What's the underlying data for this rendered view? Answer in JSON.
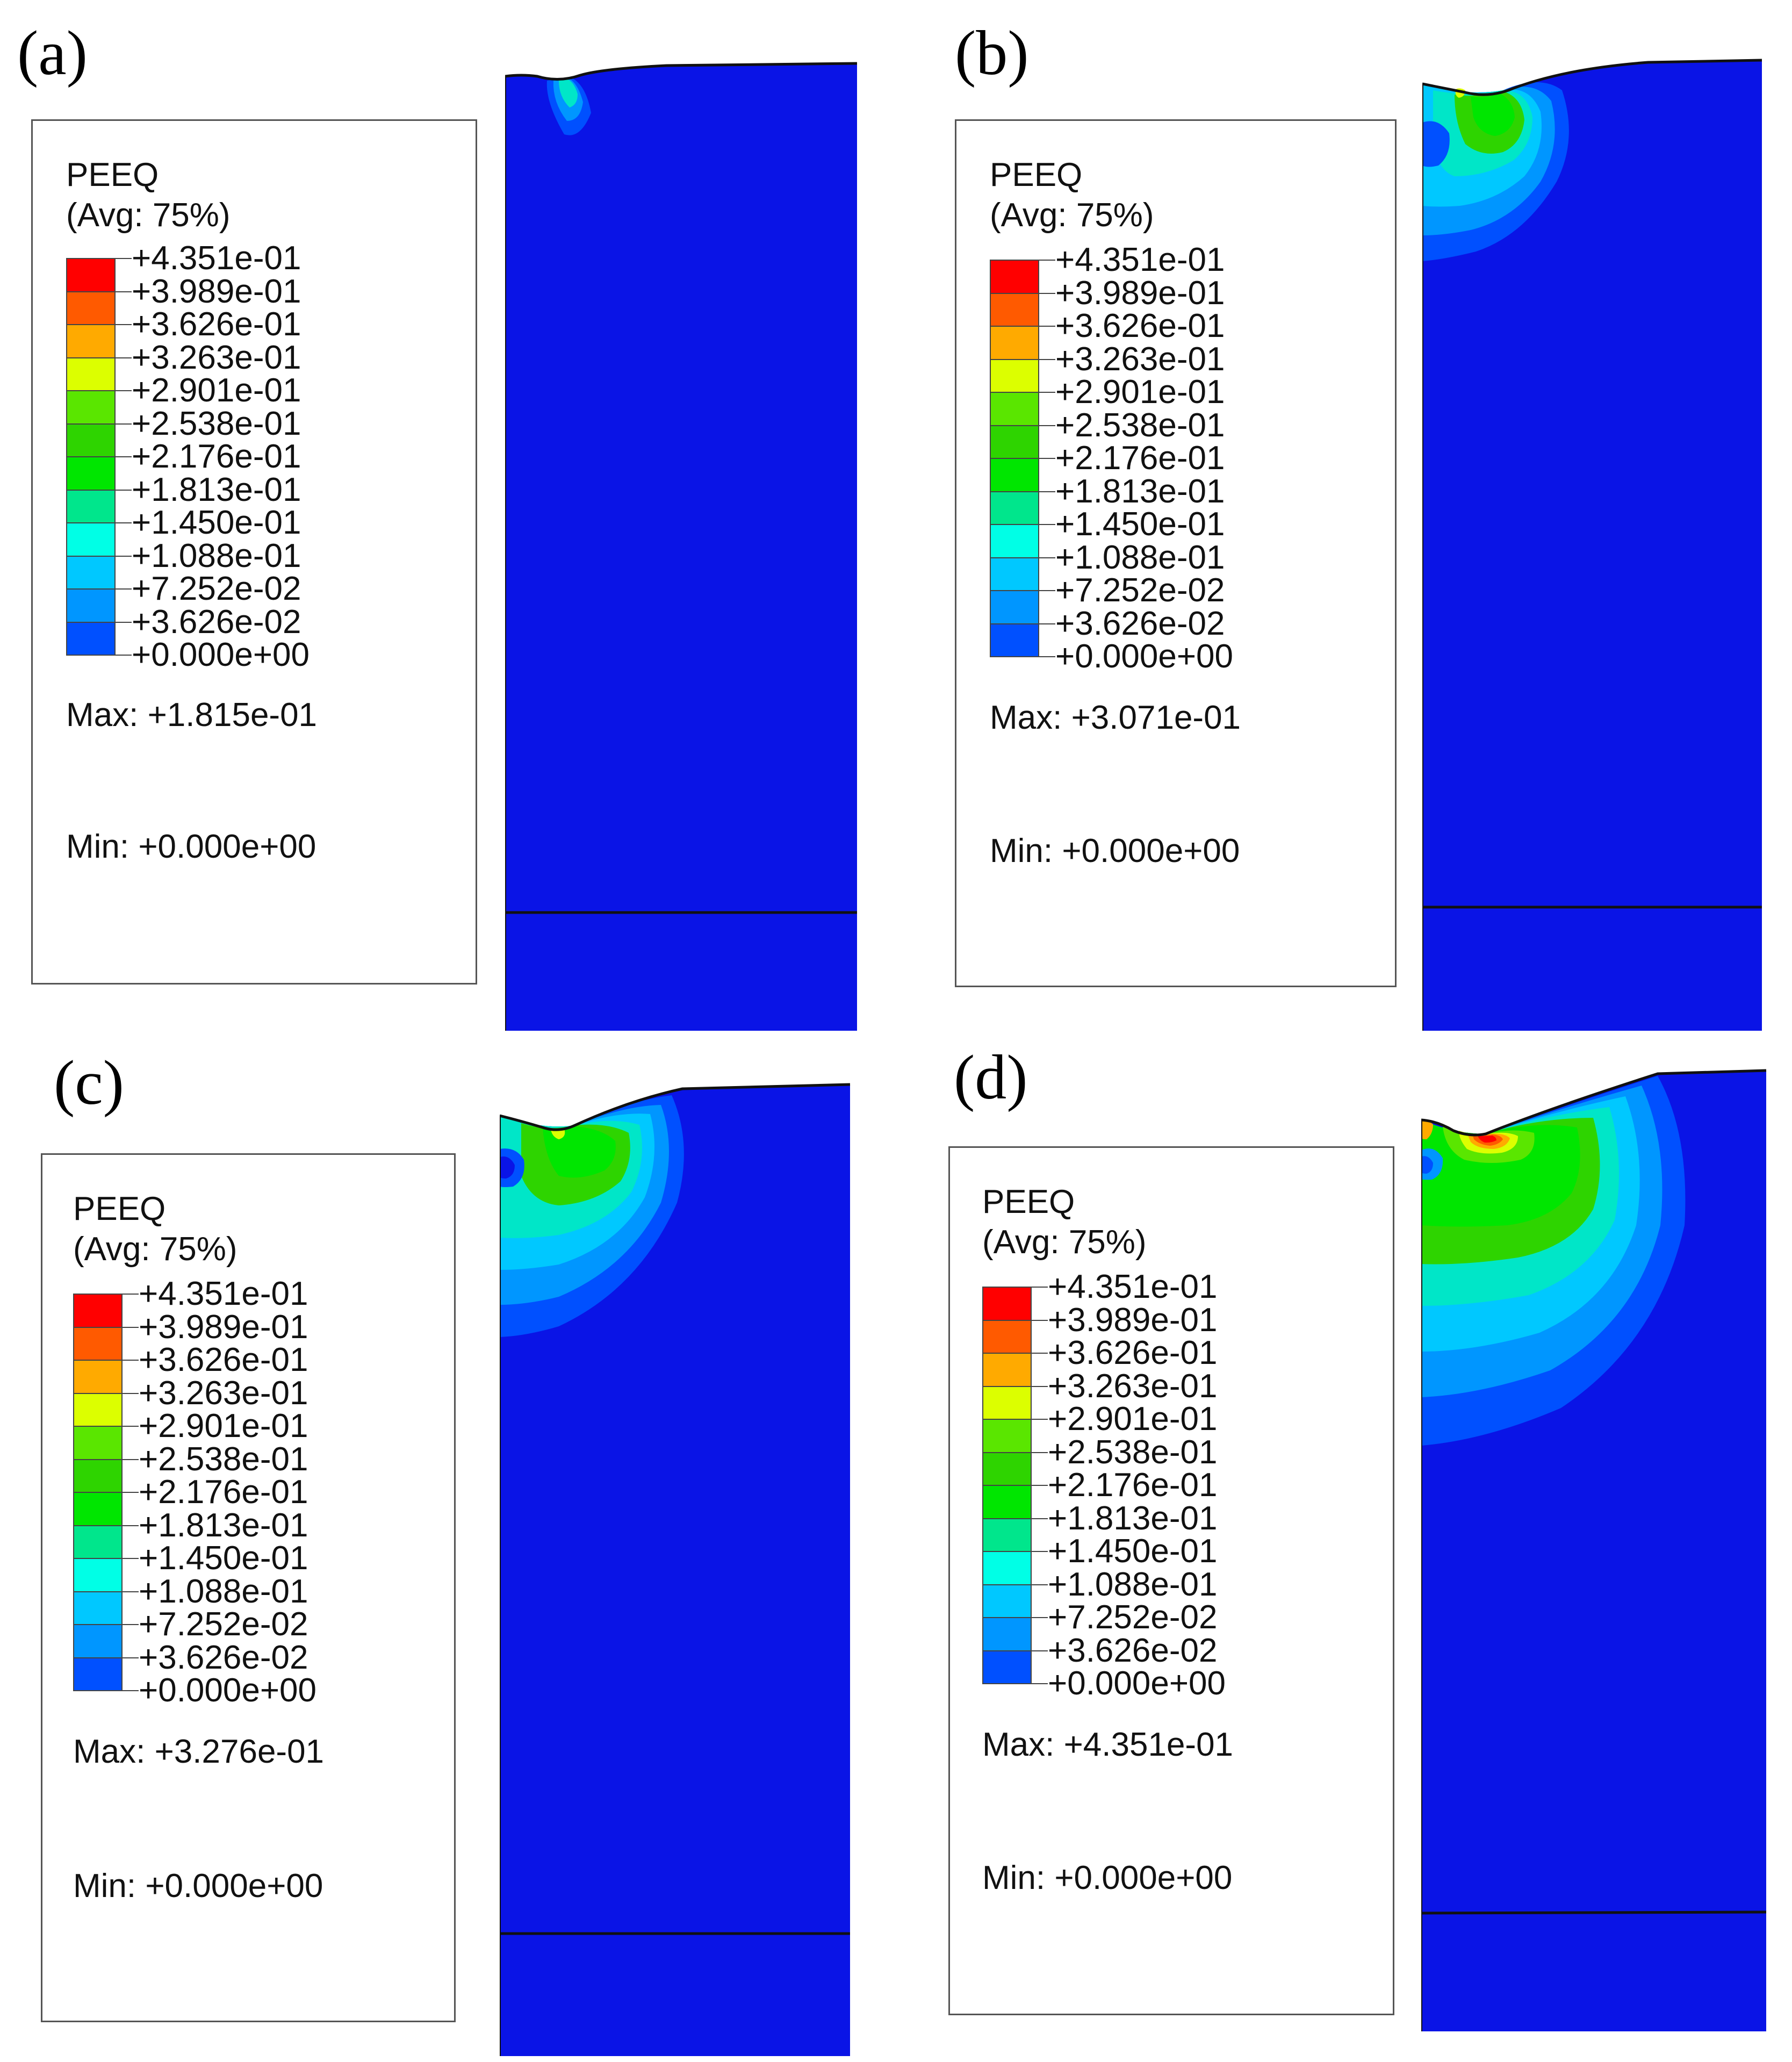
{
  "legend": {
    "variable": "PEEQ",
    "averaging": "(Avg: 75%)",
    "levels": [
      {
        "label": "+4.351e-01",
        "color": "#ff0000"
      },
      {
        "label": "+3.989e-01",
        "color": "#ff5a00"
      },
      {
        "label": "+3.626e-01",
        "color": "#ffaa00"
      },
      {
        "label": "+3.263e-01",
        "color": "#dcff00"
      },
      {
        "label": "+2.901e-01",
        "color": "#5ae600"
      },
      {
        "label": "+2.538e-01",
        "color": "#2ed400"
      },
      {
        "label": "+2.176e-01",
        "color": "#00e600"
      },
      {
        "label": "+1.813e-01",
        "color": "#00e68c"
      },
      {
        "label": "+1.450e-01",
        "color": "#00ffe6"
      },
      {
        "label": "+1.088e-01",
        "color": "#00c8ff"
      },
      {
        "label": "+7.252e-02",
        "color": "#0096ff"
      },
      {
        "label": "+3.626e-02",
        "color": "#0050ff"
      },
      {
        "label": "+0.000e+00",
        "color": "#0a14e6"
      }
    ]
  },
  "model_color": "#0a14e6",
  "panels": [
    {
      "label": "(a)",
      "max": "Max: +1.815e-01",
      "min": "Min: +0.000e+00"
    },
    {
      "label": "(b)",
      "max": "Max: +3.071e-01",
      "min": "Min: +0.000e+00"
    },
    {
      "label": "(c)",
      "max": "Max: +3.276e-01",
      "min": "Min: +0.000e+00"
    },
    {
      "label": "(d)",
      "max": "Max: +4.351e-01",
      "min": "Min: +0.000e+00"
    }
  ]
}
